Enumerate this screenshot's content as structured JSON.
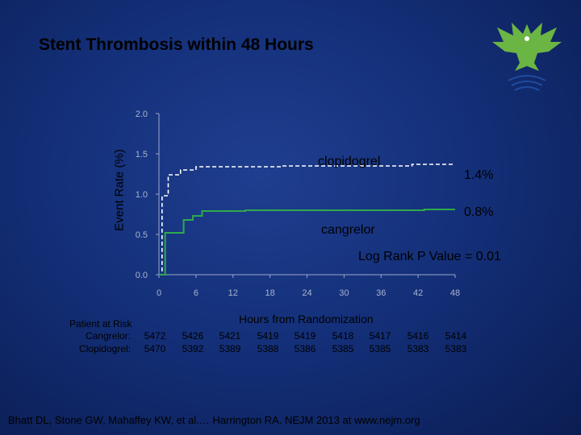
{
  "title": "Stent Thrombosis within 48 Hours",
  "chart_data": {
    "type": "line",
    "title": "Stent Thrombosis within 48 Hours",
    "ylabel": "Event Rate (%)",
    "xlabel": "Hours from Randomization",
    "xlim": [
      0,
      48
    ],
    "ylim": [
      0,
      2.0
    ],
    "x_ticks": [
      "0",
      "6",
      "12",
      "18",
      "24",
      "30",
      "36",
      "42",
      "48"
    ],
    "y_ticks": [
      "0.0",
      "0.5",
      "1.0",
      "1.5",
      "2.0"
    ],
    "series": [
      {
        "name": "clopidogrel",
        "style": "dashed",
        "color": "#ffffff",
        "end_label": "1.4%",
        "x": [
          0,
          0.5,
          1.5,
          3.5,
          6,
          20,
          41,
          48
        ],
        "y": [
          0,
          0.98,
          1.24,
          1.3,
          1.34,
          1.35,
          1.37,
          1.37
        ]
      },
      {
        "name": "cangrelor",
        "style": "solid",
        "color": "#2eaa4a",
        "end_label": "0.8%",
        "x": [
          0,
          1,
          4,
          5.5,
          7,
          14,
          43,
          48
        ],
        "y": [
          0,
          0.52,
          0.68,
          0.73,
          0.79,
          0.8,
          0.81,
          0.81
        ]
      }
    ],
    "annotation": "Log Rank P Value = 0.01"
  },
  "risk_table": {
    "header": "Patient at Risk",
    "rows": [
      {
        "label": "Cangrelor:",
        "values": [
          "5472",
          "5426",
          "5421",
          "5419",
          "5419",
          "5418",
          "5417",
          "5416",
          "5414"
        ]
      },
      {
        "label": "Clopidogrel:",
        "values": [
          "5470",
          "5392",
          "5389",
          "5388",
          "5386",
          "5385",
          "5385",
          "5383",
          "5383"
        ]
      }
    ]
  },
  "citation": "Bhatt DL, Stone GW, Mahaffey KW, et al.… Harrington RA. NEJM 2013 at www.nejm.org",
  "logo_icon": "eagle-icon"
}
